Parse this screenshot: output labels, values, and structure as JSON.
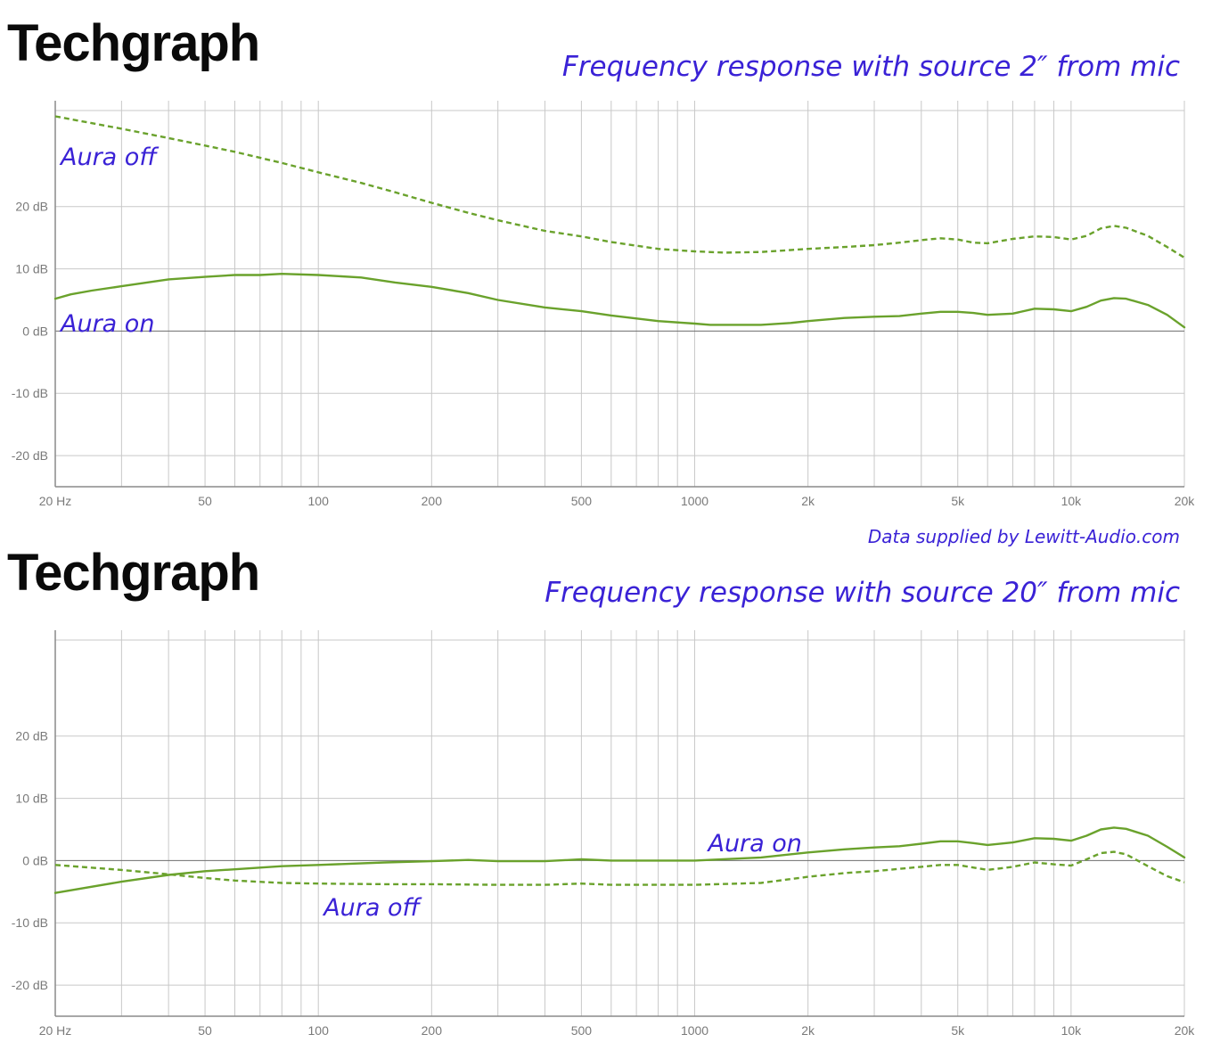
{
  "chart_data": [
    {
      "type": "line",
      "brand": "Techgraph",
      "title": "Frequency response with source 2″ from mic",
      "x_scale": "log",
      "xlim": [
        20,
        20000
      ],
      "ylim": [
        -25,
        37
      ],
      "grid": true,
      "x_ticks": [
        {
          "value": 20,
          "label": "20 Hz"
        },
        {
          "value": 50,
          "label": "50"
        },
        {
          "value": 100,
          "label": "100"
        },
        {
          "value": 200,
          "label": "200"
        },
        {
          "value": 500,
          "label": "500"
        },
        {
          "value": 1000,
          "label": "1000"
        },
        {
          "value": 2000,
          "label": "2k"
        },
        {
          "value": 5000,
          "label": "5k"
        },
        {
          "value": 10000,
          "label": "10k"
        },
        {
          "value": 20000,
          "label": "20k"
        }
      ],
      "y_ticks": [
        {
          "value": 20,
          "label": "20 dB"
        },
        {
          "value": 10,
          "label": "10 dB"
        },
        {
          "value": 0,
          "label": "0 dB"
        },
        {
          "value": -10,
          "label": "-10 dB"
        },
        {
          "value": -20,
          "label": "-20 dB"
        }
      ],
      "series": [
        {
          "name": "Aura off",
          "style": "dashed",
          "x": [
            20,
            30,
            40,
            50,
            60,
            80,
            100,
            130,
            160,
            200,
            250,
            300,
            400,
            500,
            600,
            800,
            1000,
            1200,
            1500,
            2000,
            2500,
            3000,
            3500,
            4000,
            4500,
            5000,
            5500,
            6000,
            7000,
            8000,
            9000,
            10000,
            11000,
            12000,
            13000,
            14000,
            16000,
            18000,
            20000
          ],
          "y": [
            34.5,
            32.5,
            31,
            29.8,
            28.8,
            27,
            25.5,
            23.8,
            22.3,
            20.6,
            19,
            17.8,
            16.1,
            15.2,
            14.3,
            13.2,
            12.8,
            12.6,
            12.7,
            13.2,
            13.5,
            13.8,
            14.2,
            14.6,
            14.9,
            14.7,
            14.2,
            14.1,
            14.8,
            15.2,
            15.1,
            14.7,
            15.3,
            16.5,
            16.9,
            16.6,
            15.3,
            13.5,
            11.8
          ]
        },
        {
          "name": "Aura on",
          "style": "solid",
          "x": [
            20,
            22,
            25,
            30,
            40,
            50,
            60,
            70,
            80,
            100,
            130,
            160,
            200,
            250,
            300,
            400,
            500,
            600,
            800,
            1000,
            1100,
            1300,
            1500,
            1800,
            2000,
            2500,
            3000,
            3500,
            4000,
            4500,
            5000,
            5500,
            6000,
            7000,
            8000,
            9000,
            10000,
            11000,
            12000,
            13000,
            14000,
            16000,
            18000,
            20000
          ],
          "y": [
            5.2,
            5.9,
            6.5,
            7.2,
            8.3,
            8.7,
            9.0,
            9.0,
            9.2,
            9.0,
            8.6,
            7.8,
            7.1,
            6.1,
            5.0,
            3.8,
            3.2,
            2.5,
            1.6,
            1.2,
            1.0,
            1.0,
            1.0,
            1.3,
            1.6,
            2.1,
            2.3,
            2.4,
            2.8,
            3.1,
            3.1,
            2.9,
            2.6,
            2.8,
            3.6,
            3.5,
            3.2,
            3.9,
            4.9,
            5.3,
            5.2,
            4.2,
            2.6,
            0.6
          ]
        }
      ],
      "annotations": [
        {
          "text": "Aura off",
          "x": 20,
          "y": 28
        },
        {
          "text": "Aura on",
          "x": 20,
          "y": 1.2
        }
      ]
    },
    {
      "type": "line",
      "brand": "Techgraph",
      "title": "Frequency response with source 20″ from mic",
      "x_scale": "log",
      "xlim": [
        20,
        20000
      ],
      "ylim": [
        -25,
        37
      ],
      "grid": true,
      "x_ticks": [
        {
          "value": 20,
          "label": "20 Hz"
        },
        {
          "value": 50,
          "label": "50"
        },
        {
          "value": 100,
          "label": "100"
        },
        {
          "value": 200,
          "label": "200"
        },
        {
          "value": 500,
          "label": "500"
        },
        {
          "value": 1000,
          "label": "1000"
        },
        {
          "value": 2000,
          "label": "2k"
        },
        {
          "value": 5000,
          "label": "5k"
        },
        {
          "value": 10000,
          "label": "10k"
        },
        {
          "value": 20000,
          "label": "20k"
        }
      ],
      "y_ticks": [
        {
          "value": 20,
          "label": "20 dB"
        },
        {
          "value": 10,
          "label": "10 dB"
        },
        {
          "value": 0,
          "label": "0 dB"
        },
        {
          "value": -10,
          "label": "-10 dB"
        },
        {
          "value": -20,
          "label": "-20 dB"
        }
      ],
      "series": [
        {
          "name": "Aura off",
          "style": "dashed",
          "x": [
            20,
            30,
            40,
            50,
            60,
            80,
            100,
            150,
            200,
            300,
            400,
            500,
            600,
            800,
            1000,
            1500,
            2000,
            2500,
            3000,
            4000,
            4500,
            5000,
            6000,
            7000,
            8000,
            9000,
            10000,
            11000,
            12000,
            13000,
            14000,
            16000,
            18000,
            20000
          ],
          "y": [
            -0.7,
            -1.5,
            -2.2,
            -2.8,
            -3.2,
            -3.6,
            -3.7,
            -3.8,
            -3.8,
            -3.9,
            -3.9,
            -3.7,
            -3.9,
            -3.9,
            -3.9,
            -3.6,
            -2.6,
            -2.0,
            -1.7,
            -1.0,
            -0.7,
            -0.7,
            -1.5,
            -1.0,
            -0.3,
            -0.6,
            -0.8,
            0.2,
            1.2,
            1.4,
            1.0,
            -0.9,
            -2.5,
            -3.5
          ]
        },
        {
          "name": "Aura on",
          "style": "solid",
          "x": [
            20,
            30,
            40,
            50,
            60,
            80,
            100,
            150,
            200,
            250,
            300,
            400,
            500,
            600,
            800,
            1000,
            1500,
            2000,
            2500,
            3000,
            3500,
            4000,
            4500,
            5000,
            5500,
            6000,
            7000,
            8000,
            9000,
            10000,
            11000,
            12000,
            13000,
            14000,
            16000,
            18000,
            20000
          ],
          "y": [
            -5.2,
            -3.4,
            -2.3,
            -1.7,
            -1.4,
            -0.9,
            -0.7,
            -0.3,
            -0.1,
            0.1,
            -0.1,
            -0.1,
            0.2,
            0.0,
            0.0,
            0.0,
            0.5,
            1.3,
            1.8,
            2.1,
            2.3,
            2.7,
            3.1,
            3.1,
            2.8,
            2.5,
            2.9,
            3.6,
            3.5,
            3.2,
            4.0,
            5.0,
            5.3,
            5.1,
            4.0,
            2.2,
            0.5
          ]
        }
      ],
      "annotations": [
        {
          "text": "Aura on",
          "x": 1050,
          "y": 2.8
        },
        {
          "text": "Aura off",
          "x": 100,
          "y": -7.5
        }
      ]
    }
  ],
  "footer": {
    "credit": "Data supplied by Lewitt-Audio.com"
  }
}
